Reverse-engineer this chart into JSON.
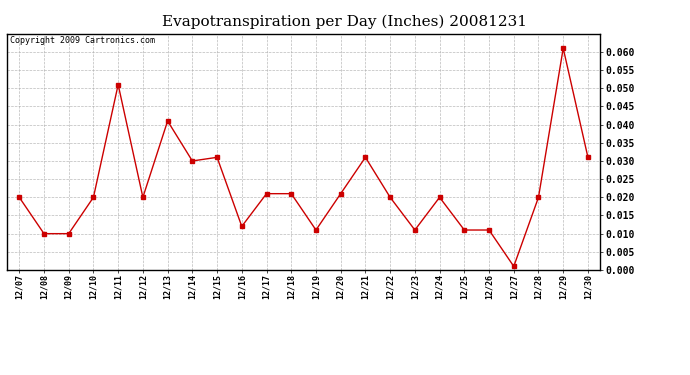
{
  "title": "Evapotranspiration per Day (Inches) 20081231",
  "copyright_text": "Copyright 2009 Cartronics.com",
  "x_labels": [
    "12/07",
    "12/08",
    "12/09",
    "12/10",
    "12/11",
    "12/12",
    "12/13",
    "12/14",
    "12/15",
    "12/16",
    "12/17",
    "12/18",
    "12/19",
    "12/20",
    "12/21",
    "12/22",
    "12/23",
    "12/24",
    "12/25",
    "12/26",
    "12/27",
    "12/28",
    "12/29",
    "12/30"
  ],
  "y_values": [
    0.02,
    0.01,
    0.01,
    0.02,
    0.051,
    0.02,
    0.041,
    0.03,
    0.031,
    0.012,
    0.021,
    0.021,
    0.011,
    0.021,
    0.031,
    0.02,
    0.011,
    0.02,
    0.011,
    0.011,
    0.001,
    0.02,
    0.061,
    0.031
  ],
  "line_color": "#cc0000",
  "marker": "s",
  "marker_size": 3,
  "ylim": [
    0.0,
    0.065
  ],
  "yticks": [
    0.0,
    0.005,
    0.01,
    0.015,
    0.02,
    0.025,
    0.03,
    0.035,
    0.04,
    0.045,
    0.05,
    0.055,
    0.06
  ],
  "bg_color": "#ffffff",
  "grid_color": "#aaaaaa",
  "title_fontsize": 11,
  "copyright_fontsize": 6,
  "tick_fontsize": 7,
  "xtick_fontsize": 6
}
